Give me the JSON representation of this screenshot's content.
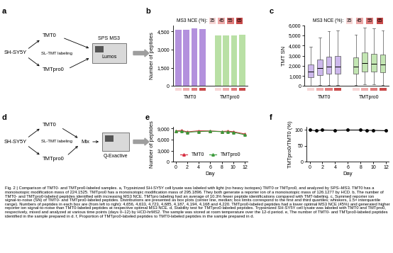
{
  "chart_data": [
    {
      "panel": "b",
      "type": "bar",
      "y_label": "Number of peptides",
      "legend_title": "MS3 NCE (%):",
      "nce": [
        35,
        45,
        55,
        65
      ],
      "nce_colors": [
        "#f6d5d5",
        "#eeaaaa",
        "#e07b7b",
        "#c94a4a"
      ],
      "groups": [
        {
          "name": "TMT0",
          "color": "#b391dd",
          "values": [
            4656,
            4633,
            4723,
            4685
          ]
        },
        {
          "name": "TMTpro0",
          "color": "#b9e0a5",
          "values": [
            4187,
            4194,
            4168,
            4220
          ]
        }
      ],
      "ylim": [
        0,
        5000
      ],
      "yticks": [
        0,
        {
          "value": 1500,
          "label": "1,500"
        },
        {
          "value": 3000,
          "label": "3,000"
        },
        {
          "value": 4500,
          "label": "4,500"
        }
      ]
    },
    {
      "panel": "c",
      "type": "box",
      "y_label": "TMT SN",
      "legend_title": "MS3 NCE (%):",
      "nce": [
        35,
        45,
        55,
        65
      ],
      "nce_colors": [
        "#f6d5d5",
        "#eeaaaa",
        "#e07b7b",
        "#c94a4a"
      ],
      "groups": [
        {
          "name": "TMT0",
          "color": "#cdb8ec",
          "boxes": [
            {
              "whislo": 50,
              "q1": 900,
              "med": 1400,
              "q3": 2100,
              "whishi": 3900
            },
            {
              "whislo": 100,
              "q1": 1100,
              "med": 1750,
              "q3": 2600,
              "whishi": 4800
            },
            {
              "whislo": 100,
              "q1": 1200,
              "med": 1900,
              "q3": 2900,
              "whishi": 5400
            },
            {
              "whislo": 100,
              "q1": 1200,
              "med": 1950,
              "q3": 2950,
              "whishi": 5500
            }
          ]
        },
        {
          "name": "TMTpro0",
          "color": "#c3e6b3",
          "boxes": [
            {
              "whislo": 100,
              "q1": 1250,
              "med": 1900,
              "q3": 2800,
              "whishi": 5100
            },
            {
              "whislo": 150,
              "q1": 1450,
              "med": 2300,
              "q3": 3300,
              "whishi": 5800
            },
            {
              "whislo": 150,
              "q1": 1400,
              "med": 2200,
              "q3": 3200,
              "whishi": 5700
            },
            {
              "whislo": 100,
              "q1": 1350,
              "med": 2100,
              "q3": 3100,
              "whishi": 5500
            }
          ]
        }
      ],
      "ylim": [
        0,
        6000
      ],
      "yticks": [
        0,
        {
          "value": 1000,
          "label": "1,000"
        },
        {
          "value": 2000,
          "label": "2,000"
        },
        {
          "value": 3000,
          "label": "3,000"
        },
        {
          "value": 4000,
          "label": "4,000"
        },
        {
          "value": 5000,
          "label": "5,000"
        },
        {
          "value": 6000,
          "label": "6,000"
        }
      ]
    },
    {
      "panel": "e",
      "type": "line",
      "x_label": "Day",
      "y_label": "Number of peptides",
      "x": [
        0,
        1,
        2,
        4,
        6,
        8,
        9,
        10,
        12
      ],
      "series": [
        {
          "name": "TMT0",
          "color": "#d62b3f",
          "marker": "triangle",
          "values": [
            8300,
            8450,
            8050,
            8350,
            8300,
            8150,
            8250,
            8100,
            7500
          ]
        },
        {
          "name": "TMTpro0",
          "color": "#3a9a3a",
          "marker": "triangle",
          "values": [
            8250,
            8200,
            7950,
            8150,
            8250,
            8100,
            8050,
            7950,
            7300
          ]
        }
      ],
      "xlim": [
        -0.5,
        12.5
      ],
      "xticks": [
        0,
        2,
        4,
        6,
        8,
        10,
        12
      ],
      "ylim": [
        0,
        9500
      ],
      "yticks": [
        0,
        {
          "value": 3000,
          "label": "3,000"
        },
        {
          "value": 6000,
          "label": "6,000"
        },
        {
          "value": 9000,
          "label": "9,000"
        }
      ],
      "legend": "lower center"
    },
    {
      "panel": "f",
      "type": "line",
      "x_label": "Day",
      "y_label": "TMTpro0/TMT0 (%)",
      "x": [
        0,
        1,
        2,
        4,
        6,
        8,
        9,
        10,
        12
      ],
      "series": [
        {
          "color": "#000000",
          "marker": "circle",
          "values": [
            99,
            97,
            99,
            98,
            99,
            99,
            98,
            98,
            97
          ]
        }
      ],
      "xlim": [
        -0.5,
        12.5
      ],
      "xticks": [
        0,
        2,
        4,
        6,
        8,
        10,
        12
      ],
      "ylim": [
        0,
        110
      ],
      "yticks": [
        0,
        50,
        100
      ]
    }
  ],
  "diagrams": [
    {
      "panel": "a",
      "source": "SH-SY5Y",
      "labels": [
        "TMT0",
        "TMTpro0"
      ],
      "method": "SL-TMT labeling",
      "acquisition": "SPS MS3",
      "instrument": "Lumos"
    },
    {
      "panel": "d",
      "source": "SH-SY5Y",
      "labels": [
        "TMT0",
        "TMTpro0"
      ],
      "method": "SL-TMT labeling",
      "step": "Mix",
      "instrument": "Q-Exactive"
    }
  ],
  "caption": "Fig. 2 | Comparison of TMT0- and TMTpro0-labeled samples. a, Trypsinized SH-SY5Y cell lysate was labeled with light (no heavy isotopes) TMT0 or TMTpro0, and analyzed by SPS–MS3. TMT0 has a monoisotopic modification mass of 224.1525. TMTpro0 has a monoisotopic modification mass of 295.1896. They both generate a reporter ion of a monoisotopic mass of 126.1277 by HCD. b, The number of TMT0- and TMTpro0-labeled peptides identified with increasing MS3 NCE. TMTpro labeling had an average of 10.3% fewer peptide identifications compared with TMT-labeling. c, Summed reporter ion signal-to-noise (SN) of TMT0- and TMTpro0-labeled peptides. Distributions are presented as box plots (center line, median; box limits correspond to the first and third quartiles; whiskers, 1.5× interquartile range). Numbers of peptides in each box are (from left to right): 4,656, 4,633, 4,723, 4,685, 4,187, 4,194, 4,168 and 4,220. TMTpro0-labeled peptides had a lower optimal MS3 NCE (45%) and generated higher reporter ion signal-to-noise than TMT0-labeled peptides at respective optimal MS3 NCE. d, Stability test for TMTpro0-labeled peptides. Trypsinized SH-SY5Y cell lysate was labeled with TMT0 and TMTpro0, respectively, mixed and analyzed at various time points (days 0–12) by HCD-hrMS2. The sample was stored at room temperature over the 12-d period. e, The number of TMT0- and TMTpro0-labeled peptides identified in the sample prepared in d. f, Proportion of TMTpro0-labeled peptides to TMT0-labeled peptides in the sample prepared in d."
}
